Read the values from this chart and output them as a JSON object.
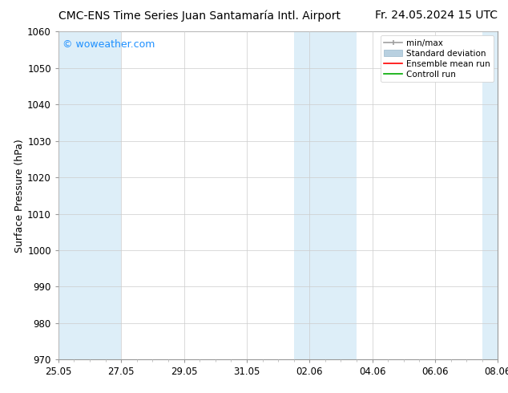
{
  "title_left": "CMC-ENS Time Series Juan Santamaría Intl. Airport",
  "title_right": "Fr. 24.05.2024 15 UTC",
  "ylabel": "Surface Pressure (hPa)",
  "ylim": [
    970,
    1060
  ],
  "yticks": [
    970,
    980,
    990,
    1000,
    1010,
    1020,
    1030,
    1040,
    1050,
    1060
  ],
  "x_tick_labels": [
    "25.05",
    "27.05",
    "29.05",
    "31.05",
    "02.06",
    "04.06",
    "06.06",
    "08.06"
  ],
  "x_tick_positions": [
    0,
    2,
    4,
    6,
    8,
    10,
    12,
    14
  ],
  "x_minor_spacing": 0.5,
  "shaded_bands": [
    {
      "x_start": 0.0,
      "x_end": 2.0,
      "color": "#ddeef8"
    },
    {
      "x_start": 7.5,
      "x_end": 9.5,
      "color": "#ddeef8"
    },
    {
      "x_start": 13.5,
      "x_end": 14.0,
      "color": "#ddeef8"
    }
  ],
  "watermark_text": "© woweather.com",
  "watermark_color": "#1e90ff",
  "legend_labels": [
    "min/max",
    "Standard deviation",
    "Ensemble mean run",
    "Controll run"
  ],
  "legend_line_colors": [
    "#a0a0a0",
    "#b8d0e0",
    "#ff0000",
    "#00aa00"
  ],
  "bg_color": "#ffffff",
  "plot_bg_color": "#ffffff",
  "grid_color": "#cccccc",
  "title_fontsize": 10,
  "ylabel_fontsize": 9,
  "tick_fontsize": 8.5,
  "watermark_fontsize": 9,
  "legend_fontsize": 7.5,
  "x_lim": [
    0,
    14
  ]
}
